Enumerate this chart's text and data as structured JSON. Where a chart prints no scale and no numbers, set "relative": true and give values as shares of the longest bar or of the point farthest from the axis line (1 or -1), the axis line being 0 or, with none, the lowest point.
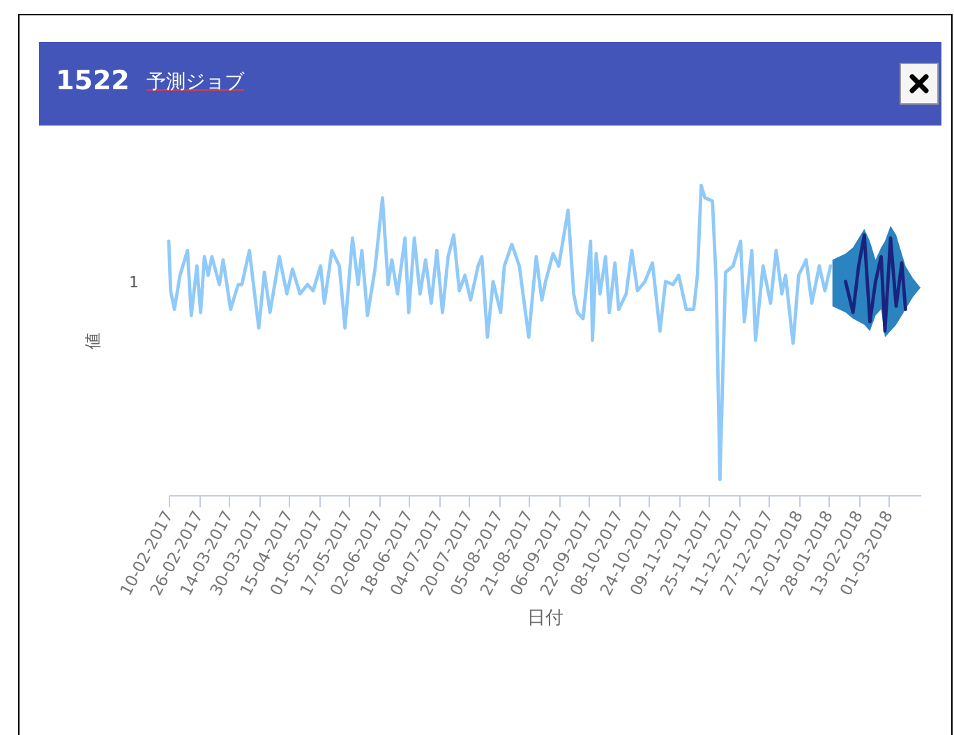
{
  "chart_data": {
    "type": "line",
    "title": "1522",
    "subtitle": "予測ジョブ",
    "xlabel": "日付",
    "ylabel": "値",
    "relative": true,
    "annotations": [
      "1"
    ],
    "xlim": [
      "2017-02-10",
      "2018-03-18"
    ],
    "xticks": [
      {
        "value": "2017-02-10",
        "label": "10-02-2017"
      },
      {
        "value": "2017-02-26",
        "label": "26-02-2017"
      },
      {
        "value": "2017-03-14",
        "label": "14-03-2017"
      },
      {
        "value": "2017-03-30",
        "label": "30-03-2017"
      },
      {
        "value": "2017-04-15",
        "label": "15-04-2017"
      },
      {
        "value": "2017-05-01",
        "label": "01-05-2017"
      },
      {
        "value": "2017-05-17",
        "label": "17-05-2017"
      },
      {
        "value": "2017-06-02",
        "label": "02-06-2017"
      },
      {
        "value": "2017-06-18",
        "label": "18-06-2017"
      },
      {
        "value": "2017-07-04",
        "label": "04-07-2017"
      },
      {
        "value": "2017-07-20",
        "label": "20-07-2017"
      },
      {
        "value": "2017-08-05",
        "label": "05-08-2017"
      },
      {
        "value": "2017-08-21",
        "label": "21-08-2017"
      },
      {
        "value": "2017-09-06",
        "label": "06-09-2017"
      },
      {
        "value": "2017-09-22",
        "label": "22-09-2017"
      },
      {
        "value": "2017-10-08",
        "label": "08-10-2017"
      },
      {
        "value": "2017-10-24",
        "label": "24-10-2017"
      },
      {
        "value": "2017-11-09",
        "label": "09-11-2017"
      },
      {
        "value": "2017-11-25",
        "label": "25-11-2017"
      },
      {
        "value": "2017-12-11",
        "label": "11-12-2017"
      },
      {
        "value": "2017-12-27",
        "label": "27-12-2017"
      },
      {
        "value": "2018-01-12",
        "label": "12-01-2018"
      },
      {
        "value": "2018-01-28",
        "label": "28-01-2018"
      },
      {
        "value": "2018-02-13",
        "label": "13-02-2018"
      },
      {
        "value": "2018-03-01",
        "label": "01-03-2018"
      }
    ],
    "series": [
      {
        "color": "#90caf9",
        "x": [
          "2017-02-10",
          "2017-02-11",
          "2017-02-13",
          "2017-02-16",
          "2017-02-20",
          "2017-02-22",
          "2017-02-25",
          "2017-02-27",
          "2017-03-01",
          "2017-03-03",
          "2017-03-05",
          "2017-03-09",
          "2017-03-11",
          "2017-03-15",
          "2017-03-19",
          "2017-03-21",
          "2017-03-25",
          "2017-03-30",
          "2017-04-02",
          "2017-04-05",
          "2017-04-10",
          "2017-04-14",
          "2017-04-17",
          "2017-04-21",
          "2017-04-25",
          "2017-04-28",
          "2017-05-02",
          "2017-05-04",
          "2017-05-08",
          "2017-05-12",
          "2017-05-15",
          "2017-05-19",
          "2017-05-22",
          "2017-05-24",
          "2017-05-27",
          "2017-05-31",
          "2017-06-04",
          "2017-06-07",
          "2017-06-09",
          "2017-06-12",
          "2017-06-16",
          "2017-06-18",
          "2017-06-21",
          "2017-06-24",
          "2017-06-27",
          "2017-06-30",
          "2017-07-03",
          "2017-07-06",
          "2017-07-09",
          "2017-07-12",
          "2017-07-15",
          "2017-07-18",
          "2017-07-21",
          "2017-07-25",
          "2017-07-27",
          "2017-07-30",
          "2017-08-02",
          "2017-08-06",
          "2017-08-08",
          "2017-08-12",
          "2017-08-16",
          "2017-08-21",
          "2017-08-25",
          "2017-08-28",
          "2017-08-30",
          "2017-09-03",
          "2017-09-06",
          "2017-09-11",
          "2017-09-14",
          "2017-09-16",
          "2017-09-19",
          "2017-09-21",
          "2017-09-23",
          "2017-09-24",
          "2017-09-26",
          "2017-09-28",
          "2017-10-01",
          "2017-10-03",
          "2017-10-06",
          "2017-10-08",
          "2017-10-12",
          "2017-10-15",
          "2017-10-18",
          "2017-10-22",
          "2017-10-26",
          "2017-10-30",
          "2017-11-02",
          "2017-11-06",
          "2017-11-09",
          "2017-11-13",
          "2017-11-17",
          "2017-11-19",
          "2017-11-21",
          "2017-11-23",
          "2017-11-27",
          "2017-11-29",
          "2017-12-01",
          "2017-12-04",
          "2017-12-08",
          "2017-12-12",
          "2017-12-14",
          "2017-12-18",
          "2017-12-20",
          "2017-12-24",
          "2017-12-28",
          "2017-12-31",
          "2018-01-03",
          "2018-01-05",
          "2018-01-09",
          "2018-01-12",
          "2018-01-16",
          "2018-01-19",
          "2018-01-23",
          "2018-01-26",
          "2018-01-29"
        ],
        "values": [
          0.82,
          0.66,
          0.6,
          0.71,
          0.79,
          0.58,
          0.74,
          0.59,
          0.77,
          0.71,
          0.77,
          0.68,
          0.76,
          0.6,
          0.68,
          0.68,
          0.79,
          0.54,
          0.72,
          0.59,
          0.77,
          0.65,
          0.73,
          0.65,
          0.68,
          0.66,
          0.74,
          0.62,
          0.79,
          0.74,
          0.54,
          0.83,
          0.68,
          0.79,
          0.58,
          0.73,
          0.96,
          0.68,
          0.76,
          0.65,
          0.83,
          0.59,
          0.83,
          0.65,
          0.76,
          0.62,
          0.79,
          0.59,
          0.77,
          0.84,
          0.66,
          0.71,
          0.63,
          0.74,
          0.77,
          0.51,
          0.69,
          0.59,
          0.74,
          0.81,
          0.74,
          0.51,
          0.77,
          0.63,
          0.69,
          0.78,
          0.74,
          0.92,
          0.65,
          0.59,
          0.57,
          0.69,
          0.82,
          0.5,
          0.78,
          0.65,
          0.77,
          0.59,
          0.75,
          0.6,
          0.65,
          0.79,
          0.66,
          0.69,
          0.75,
          0.53,
          0.69,
          0.68,
          0.71,
          0.6,
          0.6,
          0.71,
          1,
          0.96,
          0.95,
          0.69,
          0.05,
          0.72,
          0.74,
          0.82,
          0.56,
          0.79,
          0.5,
          0.74,
          0.62,
          0.79,
          0.65,
          0.71,
          0.49,
          0.71,
          0.76,
          0.62,
          0.74,
          0.66,
          0.74
        ]
      },
      {
        "color": "#1a237e",
        "x": [
          "2018-01-30",
          "2018-02-06",
          "2018-02-10",
          "2018-02-13",
          "2018-02-16",
          "2018-02-19",
          "2018-02-22",
          "2018-02-25",
          "2018-02-27",
          "2018-03-02",
          "2018-03-05",
          "2018-03-08",
          "2018-03-10",
          "2018-03-14",
          "2018-03-18"
        ],
        "values": [
          null,
          0.69,
          0.59,
          0.74,
          0.84,
          0.56,
          0.69,
          0.77,
          0.53,
          0.83,
          0.61,
          0.75,
          0.6,
          null,
          null
        ],
        "lower": [
          0.61,
          0.59,
          0.57,
          0.56,
          0.55,
          0.53,
          0.58,
          0.6,
          0.51,
          0.53,
          0.55,
          0.58,
          0.6,
          0.64,
          0.67
        ],
        "upper": [
          0.76,
          0.78,
          0.8,
          0.83,
          0.86,
          0.82,
          0.76,
          0.8,
          0.82,
          0.87,
          0.84,
          0.78,
          0.74,
          0.7,
          0.67
        ]
      }
    ]
  }
}
